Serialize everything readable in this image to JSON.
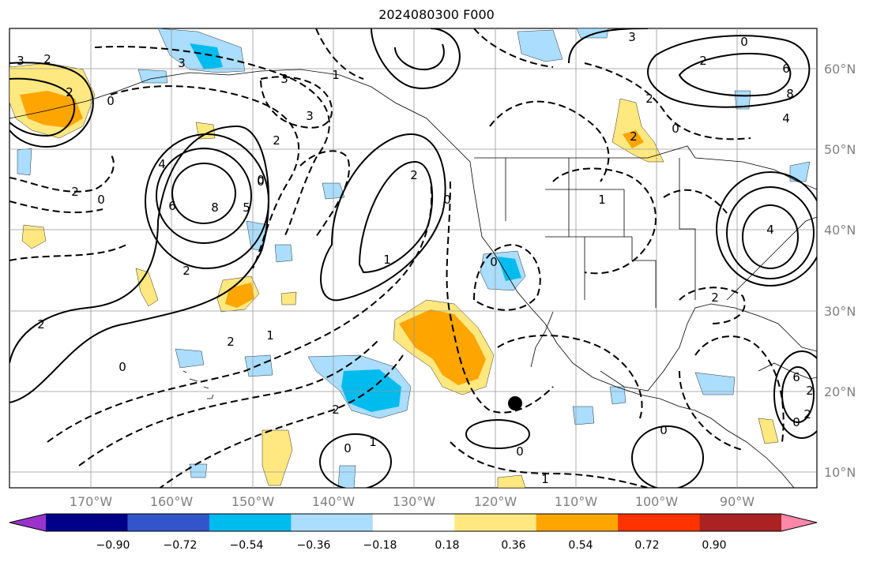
{
  "title": "2024080300 F000",
  "latitude_labels": [
    "60°N",
    "50°N",
    "40°N",
    "30°N",
    "20°N",
    "10°N"
  ],
  "longitude_labels": [
    "170°W",
    "160°W",
    "150°W",
    "140°W",
    "130°W",
    "120°W",
    "110°W",
    "100°W",
    "90°W"
  ],
  "colorbar": {
    "tick_labels": [
      "−0.90",
      "−0.72",
      "−0.54",
      "−0.36",
      "−0.18",
      "0.18",
      "0.36",
      "0.54",
      "0.72",
      "0.90"
    ],
    "colors": [
      "#9933cc",
      "#000088",
      "#3355cc",
      "#00bbee",
      "#aaddff",
      "#ffffff",
      "#ffe880",
      "#ffa500",
      "#ff3300",
      "#aa2222",
      "#ff88aa"
    ]
  },
  "contour_labels": [
    "3",
    "2",
    "0",
    "2",
    "3",
    "3",
    "2",
    "1",
    "0",
    "3",
    "0",
    "2",
    "3",
    "2",
    "6",
    "8",
    "4",
    "2",
    "0",
    "2",
    "0",
    "6",
    "8",
    "5",
    "0",
    "2",
    "4",
    "2",
    "1",
    "2",
    "1",
    "0",
    "2",
    "2",
    "0",
    "0",
    "1",
    "0",
    "0",
    "1",
    "2",
    "6",
    "4",
    "0",
    "2",
    "2",
    "1",
    "0"
  ],
  "marker": "storm-center-dot",
  "colors": {
    "land_outline": "#000000",
    "grid": "#999999",
    "positive_contour": "#000000"
  }
}
